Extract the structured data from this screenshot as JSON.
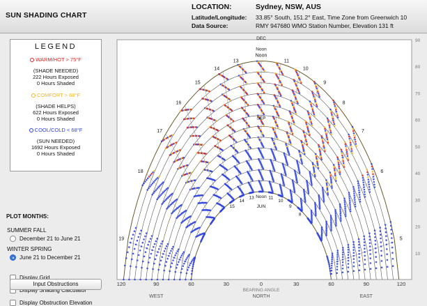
{
  "header": {
    "app_title": "SUN SHADING CHART",
    "location_label": "LOCATION:",
    "location_value": "Sydney, NSW, AUS",
    "latlon_label": "Latitude/Longitude:",
    "latlon_value": "33.85° South, 151.2° East, Time Zone from Greenwich 10",
    "source_label": "Data Source:",
    "source_value": "RMY    947680 WMO Station Number, Elevation 131 ft"
  },
  "legend": {
    "title": "LEGEND",
    "warm": {
      "label": "WARM/HOT  > 75°F",
      "note": "(SHADE NEEDED)",
      "exposed": "222 Hours Exposed",
      "shaded": "0 Hours Shaded",
      "color": "#e8201b"
    },
    "comfort": {
      "label": "COMFORT  > 68°F",
      "note": "(SHADE HELPS)",
      "exposed": "622 Hours Exposed",
      "shaded": "0 Hours Shaded",
      "color": "#f2b61c"
    },
    "cool": {
      "label": "COOL/COLD  < 68°F",
      "note": "(SUN NEEDED)",
      "exposed": "1692 Hours Exposed",
      "shaded": "0 Hours Shaded",
      "color": "#2a3fe0"
    }
  },
  "plot_months": {
    "title": "PLOT MONTHS:",
    "summer_fall": "SUMMER FALL",
    "option1": "December 21 to June 21",
    "winter_spring": "WINTER SPRING",
    "option2": "June 21 to December 21",
    "selected": "option2"
  },
  "options": {
    "display_grid": "Display Grid",
    "shading_calculator": "Display Shading Calculator",
    "obstruction_elevation": "Display Obstruction Elevation",
    "input_obstructions": "Input Obstructions"
  },
  "chart_data": {
    "type": "scatter",
    "x_ticks": [
      "120",
      "90",
      "60",
      "30",
      "0",
      "30",
      "60",
      "90",
      "120"
    ],
    "y_ticks": [
      "90",
      "80",
      "70",
      "60",
      "50",
      "40",
      "30",
      "20",
      "10"
    ],
    "xlabel": "BEARING ANGLE",
    "direction_labels": [
      "WEST",
      "NORTH",
      "EAST"
    ],
    "hour_labels_dec": [
      "19",
      "18",
      "17",
      "16",
      "15",
      "14",
      "13",
      "Noon",
      "11",
      "10",
      "9",
      "8",
      "7",
      "6",
      "5"
    ],
    "hour_labels_jun": [
      "15",
      "14",
      "13",
      "Noon",
      "11",
      "10",
      "9",
      "8"
    ],
    "annotations": [
      "DEC",
      "Noon",
      "SEP",
      "JUN"
    ],
    "xlim": [
      -120,
      120
    ],
    "ylim": [
      0,
      90
    ],
    "colors": {
      "warm": "#e8201b",
      "comfort": "#f2b61c",
      "cool": "#2a3fe0"
    }
  }
}
